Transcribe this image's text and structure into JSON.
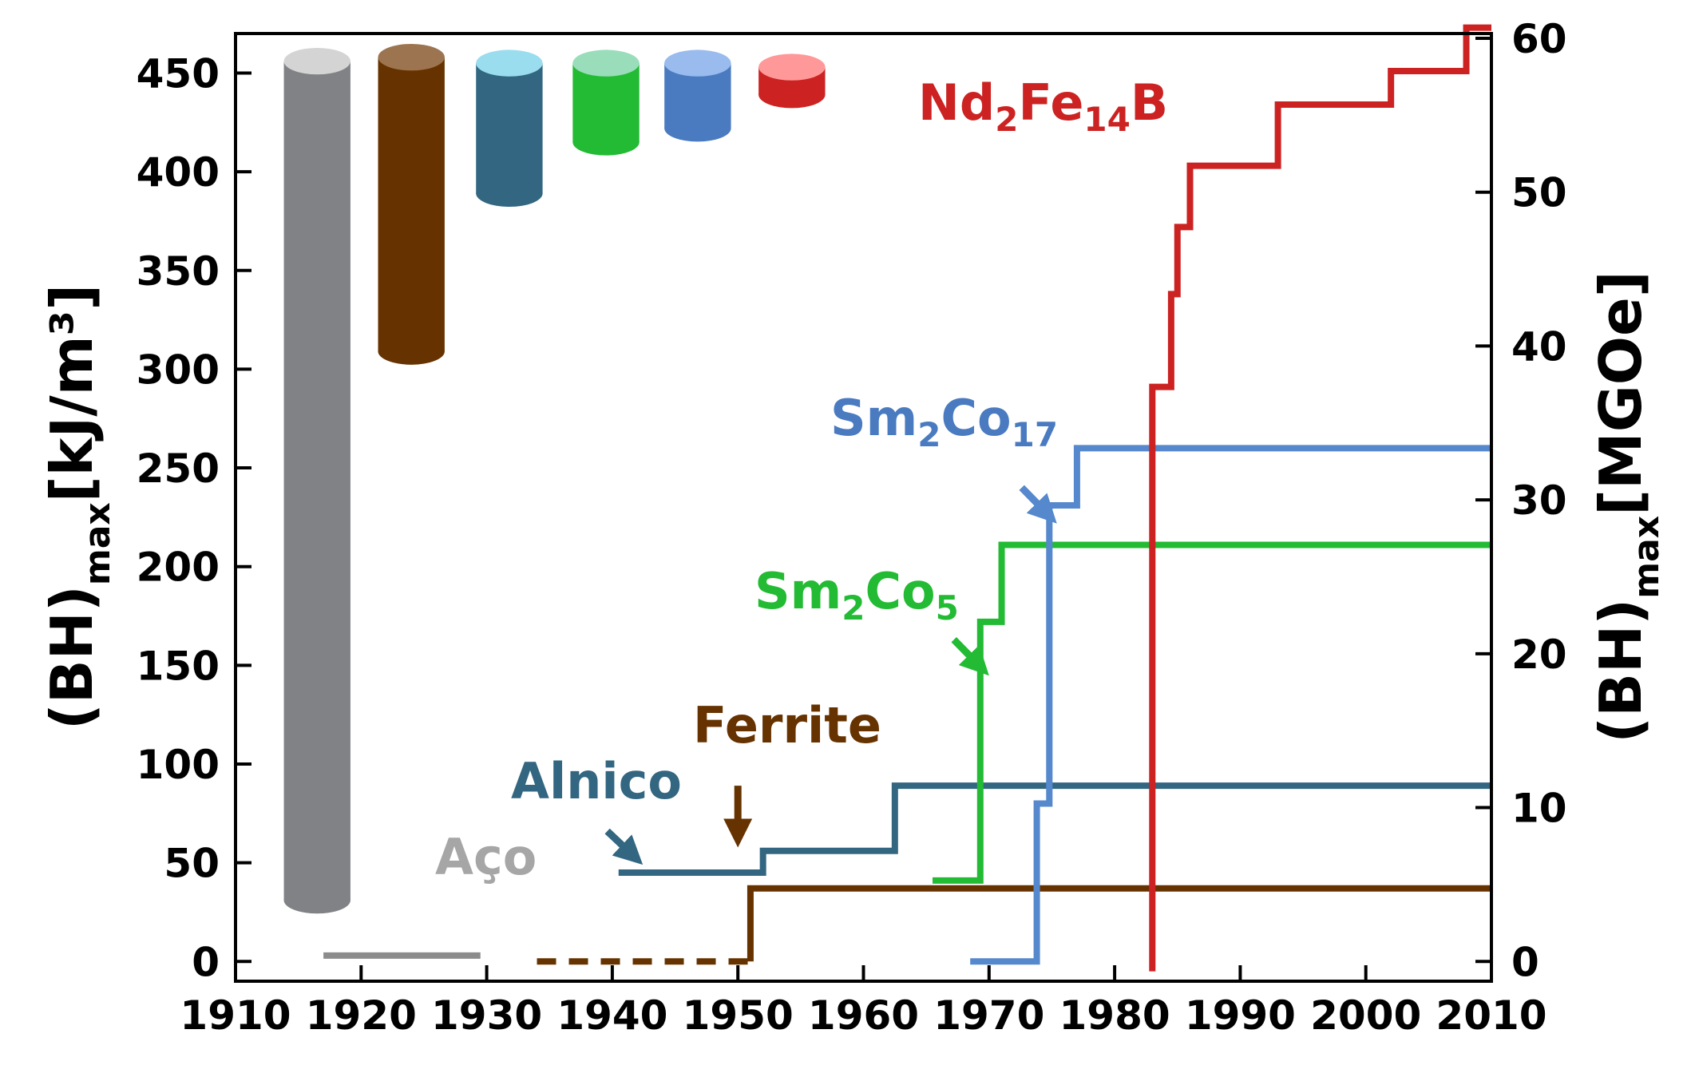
{
  "chart_data": {
    "type": "line",
    "title": "",
    "xlabel": "",
    "ylabel_left": {
      "main": "(BH)",
      "sub": "max",
      "unit": "[kJ/m³]"
    },
    "ylabel_right": {
      "main": "(BH)",
      "sub": "max",
      "unit": "[MGOe]"
    },
    "xlim": [
      1910,
      2010
    ],
    "ylim_left": [
      -10,
      470
    ],
    "ylim_right": [
      0,
      60
    ],
    "x_ticks": [
      "1910",
      "1920",
      "1930",
      "1940",
      "1950",
      "1960",
      "1970",
      "1980",
      "1990",
      "2000",
      "2010"
    ],
    "y_ticks_left": [
      "0",
      "50",
      "100",
      "150",
      "200",
      "250",
      "300",
      "350",
      "400",
      "450"
    ],
    "y_ticks_right": [
      "0",
      "10",
      "20",
      "30",
      "40",
      "50",
      "60"
    ],
    "grid": false,
    "series": [
      {
        "name": "Aço",
        "label": [
          "Aço"
        ],
        "color": "#8c8c8c",
        "label_color": "#a6a6a6",
        "dashed": false,
        "x": [
          1917,
          1929.5
        ],
        "y": [
          3,
          3
        ]
      },
      {
        "name": "Ferrite",
        "label": [
          "Ferrite"
        ],
        "color": "#663300",
        "label_color": "#663300",
        "dashed_until": 1951,
        "x": [
          1934,
          1951,
          1951,
          2010
        ],
        "y": [
          0,
          0,
          37,
          37
        ]
      },
      {
        "name": "Alnico",
        "label": [
          "Alnico"
        ],
        "color": "#336680",
        "label_color": "#336680",
        "dashed": false,
        "x": [
          1940.5,
          1952,
          1952,
          1962.5,
          1962.5,
          2010
        ],
        "y": [
          45,
          45,
          56,
          56,
          89,
          89
        ]
      },
      {
        "name": "Sm2Co5",
        "label": [
          "Sm",
          "2",
          "Co",
          "5"
        ],
        "color": "#22bb33",
        "label_color": "#22bb33",
        "dashed": false,
        "x": [
          1965.5,
          1969.3,
          1969.3,
          1971,
          1971,
          2010
        ],
        "y": [
          41,
          41,
          172,
          172,
          211,
          211
        ]
      },
      {
        "name": "Sm2Co17",
        "label": [
          "Sm",
          "2",
          "Co",
          "17"
        ],
        "color": "#5588cc",
        "label_color": "#4a7bc0",
        "dashed": false,
        "x": [
          1968.5,
          1973.8,
          1973.8,
          1974.8,
          1974.8,
          1977,
          1977,
          2010
        ],
        "y": [
          0,
          0,
          80,
          80,
          231,
          231,
          260,
          260
        ]
      },
      {
        "name": "Nd2Fe14B",
        "label": [
          "Nd",
          "2",
          "Fe",
          "14",
          "B"
        ],
        "color": "#cc2222",
        "label_color": "#cc2222",
        "dashed": false,
        "x": [
          1983,
          1983,
          1984.5,
          1984.5,
          1985,
          1985,
          1986,
          1986,
          1993,
          1993,
          2002,
          2002,
          2008,
          2008,
          2010
        ],
        "y": [
          -5,
          291,
          291,
          338,
          338,
          372,
          372,
          403,
          403,
          434,
          434,
          451,
          451,
          473,
          473
        ]
      }
    ],
    "magnets": [
      {
        "name": "aco-magnet",
        "x_center": 1916.5,
        "width_years": 5.3,
        "y_top": 456,
        "y_bottom": 31,
        "body": "#808285",
        "top": "#d4d4d4"
      },
      {
        "name": "ferrite-magnet",
        "x_center": 1924,
        "width_years": 5.3,
        "y_top": 458,
        "y_bottom": 309,
        "body": "#663300",
        "top": "#9c7550"
      },
      {
        "name": "alnico-magnet",
        "x_center": 1931.8,
        "width_years": 5.3,
        "y_top": 455,
        "y_bottom": 389,
        "body": "#336680",
        "top": "#99ddee"
      },
      {
        "name": "sm2co5-magnet",
        "x_center": 1939.5,
        "width_years": 5.3,
        "y_top": 455,
        "y_bottom": 415,
        "body": "#22bb33",
        "top": "#99ddbb"
      },
      {
        "name": "sm2co17-magnet",
        "x_center": 1946.8,
        "width_years": 5.3,
        "y_top": 455,
        "y_bottom": 422,
        "body": "#4a7bc0",
        "top": "#99bbee"
      },
      {
        "name": "nd2fe14b-magnet",
        "x_center": 1954.3,
        "width_years": 5.3,
        "y_top": 453,
        "y_bottom": 439,
        "body": "#cc2222",
        "top": "#ff9999"
      }
    ],
    "annotations": [
      {
        "name": "sm2co17-arrow",
        "series": "Sm2Co17",
        "color": "#5588cc",
        "from": [
          1972.6,
          240
        ],
        "to": [
          1974.6,
          227
        ]
      },
      {
        "name": "sm2co5-arrow",
        "series": "Sm2Co5",
        "color": "#22bb33",
        "from": [
          1967.2,
          163
        ],
        "to": [
          1969.2,
          150
        ]
      },
      {
        "name": "ferrite-arrow",
        "series": "Ferrite",
        "color": "#663300",
        "from": [
          1950,
          89
        ],
        "to": [
          1950,
          65
        ]
      },
      {
        "name": "alnico-arrow",
        "series": "Alnico",
        "color": "#336680",
        "from": [
          1939.6,
          66
        ],
        "to": [
          1941.6,
          54
        ]
      }
    ]
  }
}
